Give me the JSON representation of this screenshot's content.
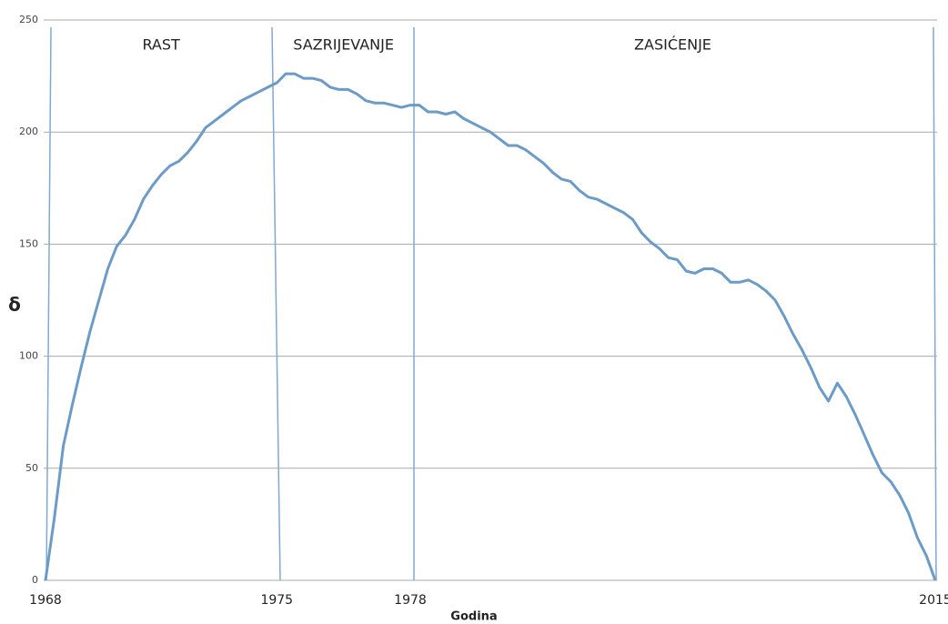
{
  "chart_data": {
    "type": "line",
    "xlabel": "Godina",
    "ylabel": "δ",
    "categories": [
      "1968",
      null,
      null,
      null,
      null,
      null,
      null,
      null,
      null,
      null,
      null,
      null,
      null,
      null,
      null,
      null,
      null,
      null,
      null,
      null,
      null,
      null,
      null,
      null,
      null,
      null,
      "1975",
      null,
      null,
      null,
      null,
      null,
      null,
      null,
      null,
      null,
      null,
      null,
      null,
      null,
      null,
      "1978",
      null,
      null,
      null,
      null,
      null,
      null,
      null,
      null,
      null,
      null,
      null,
      null,
      null,
      null,
      null,
      null,
      null,
      null,
      null,
      null,
      null,
      null,
      null,
      null,
      null,
      null,
      null,
      null,
      null,
      null,
      null,
      null,
      null,
      null,
      null,
      null,
      null,
      null,
      null,
      null,
      null,
      null,
      null,
      null,
      null,
      null,
      null,
      null,
      null,
      null,
      null,
      null,
      null,
      null,
      null,
      null,
      null,
      null,
      "2015"
    ],
    "series": [
      {
        "name": "δ",
        "color": "#6b9bc6",
        "values": [
          0,
          28,
          60,
          78,
          95,
          111,
          125,
          139,
          149,
          154,
          161,
          170,
          176,
          181,
          185,
          187,
          191,
          196,
          202,
          205,
          208,
          211,
          214,
          216,
          218,
          220,
          222,
          226,
          226,
          224,
          224,
          223,
          220,
          219,
          219,
          217,
          214,
          213,
          213,
          212,
          211,
          212,
          212,
          209,
          209,
          208,
          209,
          206,
          204,
          202,
          200,
          197,
          194,
          194,
          192,
          189,
          186,
          182,
          179,
          178,
          174,
          171,
          170,
          168,
          166,
          164,
          161,
          155,
          151,
          148,
          144,
          143,
          138,
          137,
          139,
          139,
          137,
          133,
          133,
          134,
          132,
          129,
          125,
          118,
          110,
          103,
          95,
          86,
          80,
          88,
          82,
          74,
          65,
          56,
          48,
          44,
          38,
          30,
          19,
          11,
          0
        ]
      }
    ],
    "annotations": [
      {
        "text": "RAST",
        "at": 0
      },
      {
        "text": "SAZRIJEVANJE",
        "at": 26
      },
      {
        "text": "ZASIĆENJE",
        "at": 41
      }
    ],
    "ylim": [
      0,
      250
    ],
    "yticks": [
      0,
      50,
      100,
      150,
      200,
      250
    ],
    "grid": true
  }
}
